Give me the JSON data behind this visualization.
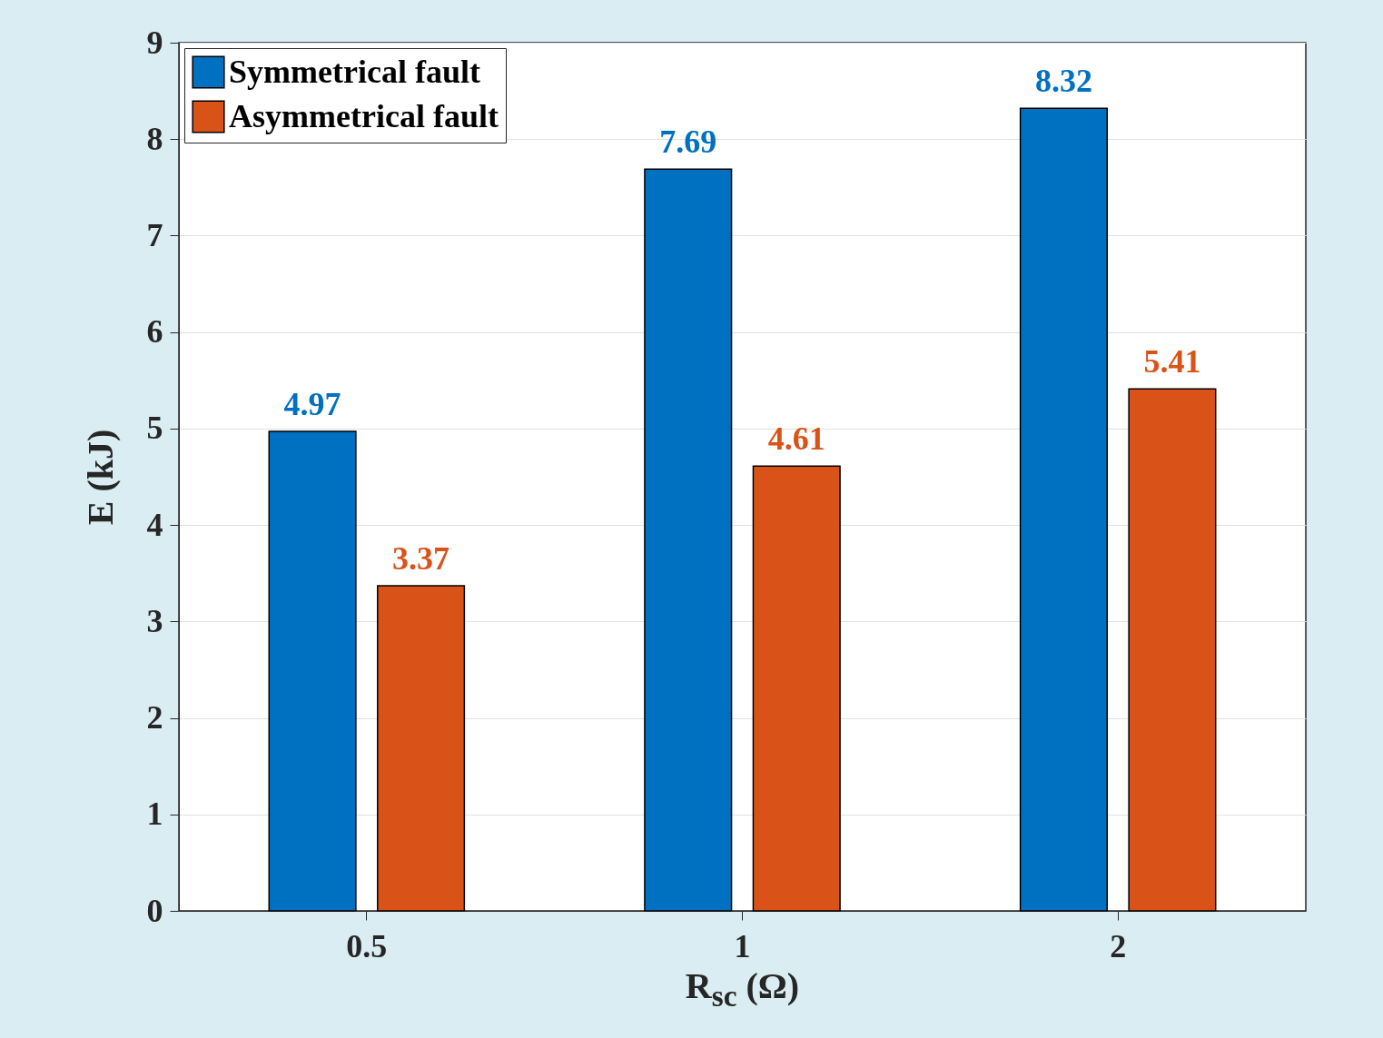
{
  "chart_data": {
    "type": "bar",
    "xlabel": "R$_{sc}$ (Ω)",
    "ylabel": "E (kJ)",
    "categories": [
      "0.5",
      "1",
      "2"
    ],
    "series": [
      {
        "name": "Symmetrical fault",
        "color": "#0070c0",
        "values": [
          4.97,
          7.69,
          8.32
        ]
      },
      {
        "name": "Asymmetrical fault",
        "color": "#d95319",
        "values": [
          3.37,
          4.61,
          5.41
        ]
      }
    ],
    "ylim": [
      0,
      9
    ],
    "yticks": [
      0,
      1,
      2,
      3,
      4,
      5,
      6,
      7,
      8,
      9
    ],
    "grid": "y",
    "legend": "top left",
    "data_labels": true
  }
}
